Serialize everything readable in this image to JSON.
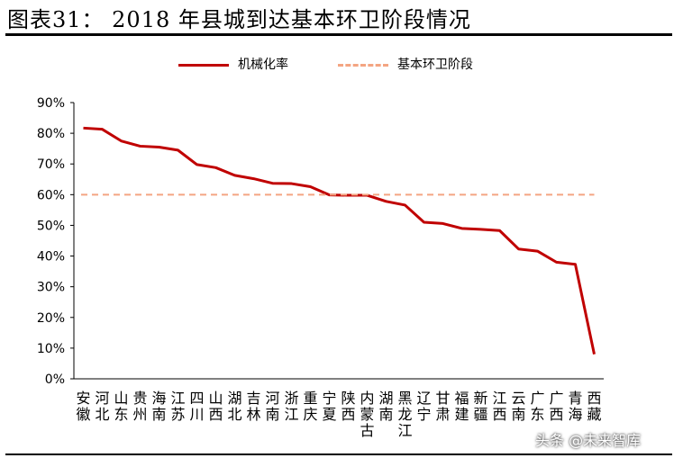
{
  "figure_title": "图表31：  2018 年县城到达基本环卫阶段情况",
  "watermark": "头条 @未来智库",
  "chart_data": {
    "type": "line",
    "categories": [
      "安徽",
      "河北",
      "山东",
      "贵州",
      "海南",
      "江苏",
      "四川",
      "山西",
      "湖北",
      "吉林",
      "河南",
      "浙江",
      "重庆",
      "宁夏",
      "陕西",
      "内蒙古",
      "湖南",
      "黑龙江",
      "辽宁",
      "甘肃",
      "福建",
      "新疆",
      "江西",
      "云南",
      "广东",
      "广西",
      "青海",
      "西藏"
    ],
    "category_lines": [
      [
        "安",
        "徽"
      ],
      [
        "河",
        "北"
      ],
      [
        "山",
        "东"
      ],
      [
        "贵",
        "州"
      ],
      [
        "海",
        "南"
      ],
      [
        "江",
        "苏"
      ],
      [
        "四",
        "川"
      ],
      [
        "山",
        "西"
      ],
      [
        "湖",
        "北"
      ],
      [
        "吉",
        "林"
      ],
      [
        "河",
        "南"
      ],
      [
        "浙",
        "江"
      ],
      [
        "重",
        "庆"
      ],
      [
        "宁",
        "夏"
      ],
      [
        "陕",
        "西"
      ],
      [
        "内",
        "蒙",
        "古"
      ],
      [
        "湖",
        "南"
      ],
      [
        "黑",
        "龙",
        "江"
      ],
      [
        "辽",
        "宁"
      ],
      [
        "甘",
        "肃"
      ],
      [
        "福",
        "建"
      ],
      [
        "新",
        "疆"
      ],
      [
        "江",
        "西"
      ],
      [
        "云",
        "南"
      ],
      [
        "广",
        "东"
      ],
      [
        "广",
        "西"
      ],
      [
        "青",
        "海"
      ],
      [
        "西",
        "藏"
      ]
    ],
    "series": [
      {
        "name": "机械化率",
        "color": "#c00000",
        "style": "solid",
        "values": [
          81.7,
          81.3,
          77.5,
          75.8,
          75.5,
          74.5,
          69.8,
          68.8,
          66.3,
          65.2,
          63.7,
          63.6,
          62.6,
          59.9,
          59.8,
          59.8,
          57.8,
          56.6,
          51.0,
          50.6,
          49.0,
          48.7,
          48.3,
          42.3,
          41.6,
          38.0,
          37.3,
          8.0
        ]
      },
      {
        "name": "基本环卫阶段",
        "color": "#f4a582",
        "style": "dashed",
        "values": [
          60,
          60,
          60,
          60,
          60,
          60,
          60,
          60,
          60,
          60,
          60,
          60,
          60,
          60,
          60,
          60,
          60,
          60,
          60,
          60,
          60,
          60,
          60,
          60,
          60,
          60,
          60,
          60
        ]
      }
    ],
    "y_ticks": [
      "0%",
      "10%",
      "20%",
      "30%",
      "40%",
      "50%",
      "60%",
      "70%",
      "80%",
      "90%"
    ],
    "ylim": [
      0,
      90
    ],
    "grid": false,
    "legend_position": "top"
  }
}
